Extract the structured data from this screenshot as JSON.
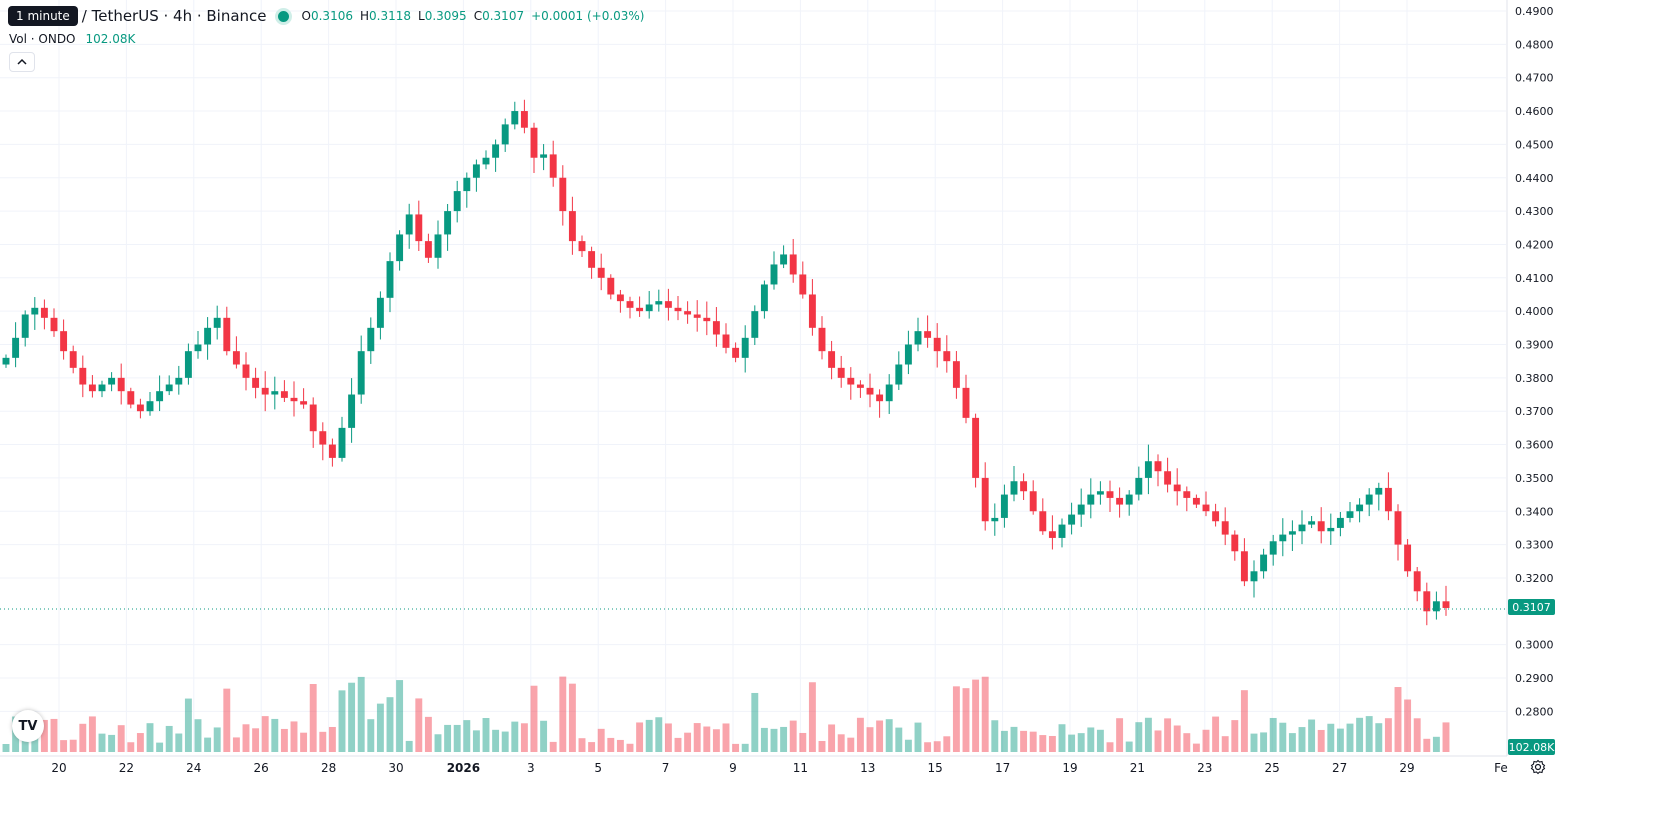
{
  "header": {
    "tooltip": "1 minute",
    "symbol_title": "/ TetherUS · 4h · Binance",
    "ohlc": {
      "o_label": "O",
      "o_value": "0.3106",
      "h_label": "H",
      "h_value": "0.3118",
      "l_label": "L",
      "l_value": "0.3095",
      "c_label": "C",
      "c_value": "0.3107",
      "change": "+0.0001 (+0.03%)"
    }
  },
  "volume_legend": {
    "label": "Vol · ONDO",
    "value": "102.08K"
  },
  "price_axis": {
    "ticks": [
      "0.4900",
      "0.4800",
      "0.4700",
      "0.4600",
      "0.4500",
      "0.4400",
      "0.4300",
      "0.4200",
      "0.4100",
      "0.4000",
      "0.3900",
      "0.3800",
      "0.3700",
      "0.3600",
      "0.3500",
      "0.3400",
      "0.3300",
      "0.3200",
      "0.3000",
      "0.2900",
      "0.2800"
    ],
    "last_price_label": "0.3107",
    "volume_label": "102.08K"
  },
  "time_axis": {
    "labels": [
      "20",
      "22",
      "24",
      "26",
      "28",
      "30",
      "2026",
      "3",
      "5",
      "7",
      "9",
      "11",
      "13",
      "15",
      "17",
      "19",
      "21",
      "23",
      "25",
      "27",
      "29",
      "Fe"
    ]
  },
  "colors": {
    "up": "#089981",
    "down": "#f23645",
    "grid": "#f0f3fa",
    "text": "#131722"
  },
  "icons": {
    "logo": "tradingview-logo-icon",
    "settings": "gear-icon",
    "collapse": "chevron-up-icon"
  },
  "chart_data": {
    "type": "candlestick",
    "interval": "4h",
    "last_price": 0.3107,
    "y_range": [
      0.2735,
      0.4935
    ],
    "x_range": [
      "Dec 19",
      "Feb 1"
    ],
    "candle_closes": [
      0.386,
      0.392,
      0.399,
      0.401,
      0.398,
      0.394,
      0.388,
      0.383,
      0.378,
      0.376,
      0.378,
      0.38,
      0.376,
      0.372,
      0.37,
      0.373,
      0.376,
      0.378,
      0.38,
      0.388,
      0.39,
      0.395,
      0.398,
      0.388,
      0.384,
      0.38,
      0.377,
      0.375,
      0.376,
      0.374,
      0.373,
      0.372,
      0.364,
      0.36,
      0.356,
      0.365,
      0.375,
      0.388,
      0.395,
      0.404,
      0.415,
      0.423,
      0.429,
      0.421,
      0.416,
      0.423,
      0.43,
      0.436,
      0.44,
      0.444,
      0.446,
      0.45,
      0.456,
      0.46,
      0.455,
      0.446,
      0.447,
      0.44,
      0.43,
      0.421,
      0.418,
      0.413,
      0.41,
      0.405,
      0.403,
      0.401,
      0.4,
      0.402,
      0.403,
      0.401,
      0.4,
      0.399,
      0.398,
      0.397,
      0.393,
      0.389,
      0.386,
      0.392,
      0.4,
      0.408,
      0.414,
      0.417,
      0.411,
      0.405,
      0.395,
      0.388,
      0.383,
      0.38,
      0.378,
      0.377,
      0.375,
      0.373,
      0.378,
      0.384,
      0.39,
      0.394,
      0.392,
      0.388,
      0.385,
      0.377,
      0.368,
      0.35,
      0.337,
      0.338,
      0.345,
      0.349,
      0.346,
      0.34,
      0.334,
      0.332,
      0.336,
      0.339,
      0.342,
      0.345,
      0.346,
      0.344,
      0.342,
      0.345,
      0.35,
      0.355,
      0.352,
      0.348,
      0.346,
      0.344,
      0.342,
      0.34,
      0.337,
      0.333,
      0.328,
      0.319,
      0.322,
      0.327,
      0.331,
      0.333,
      0.334,
      0.336,
      0.337,
      0.334,
      0.335,
      0.338,
      0.34,
      0.342,
      0.345,
      0.347,
      0.34,
      0.33,
      0.322,
      0.316,
      0.31,
      0.313,
      0.311
    ]
  }
}
